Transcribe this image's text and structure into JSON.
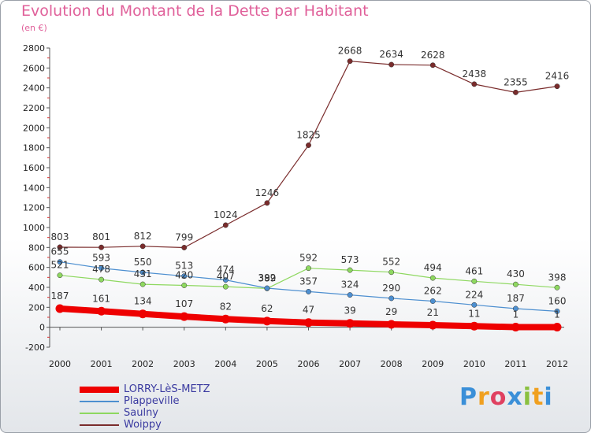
{
  "title": "Evolution du Montant de la Dette par Habitant",
  "subtitle": "(en €)",
  "logo": "Proxiti",
  "colors": {
    "title": "#e0609a",
    "legend_text": "#3a3aa0"
  },
  "chart_data": {
    "type": "line",
    "x": [
      "2000",
      "2001",
      "2002",
      "2003",
      "2004",
      "2005",
      "2006",
      "2007",
      "2008",
      "2009",
      "2010",
      "2011",
      "2012"
    ],
    "yticks": [
      "-200",
      "0",
      "200",
      "400",
      "600",
      "800",
      "1000",
      "1200",
      "1400",
      "1600",
      "1800",
      "2000",
      "2200",
      "2400",
      "2600",
      "2800"
    ],
    "ylim": [
      -200,
      2800
    ],
    "grid": false,
    "legend_position": "bottom-left",
    "series": [
      {
        "name": "LORRY-LèS-METZ",
        "color": "#ee0000",
        "width": 8,
        "values": [
          187,
          161,
          134,
          107,
          82,
          62,
          47,
          39,
          29,
          21,
          11,
          1,
          1
        ]
      },
      {
        "name": "Plappeville",
        "color": "#4d8fd0",
        "width": 1.2,
        "values": [
          655,
          593,
          550,
          513,
          474,
          392,
          357,
          324,
          290,
          262,
          224,
          187,
          160
        ]
      },
      {
        "name": "Saulny",
        "color": "#8ed860",
        "width": 1.2,
        "values": [
          521,
          478,
          431,
          420,
          407,
          389,
          592,
          573,
          552,
          494,
          461,
          430,
          398
        ]
      },
      {
        "name": "Woippy",
        "color": "#7a2c2c",
        "width": 1.2,
        "values": [
          803,
          801,
          812,
          799,
          1024,
          1246,
          1825,
          2668,
          2634,
          2628,
          2438,
          2355,
          2416
        ]
      }
    ],
    "point_labels": [
      {
        "series": 0,
        "values": [
          "187",
          "161",
          "134",
          "107",
          "82",
          "62",
          "47",
          "39",
          "29",
          "21",
          "11",
          "1",
          "1"
        ]
      },
      {
        "series": 1,
        "values": [
          "655",
          "593",
          "550",
          "513",
          "474",
          "392",
          "357",
          "324",
          "290",
          "262",
          "224",
          "187",
          "160"
        ]
      },
      {
        "series": 2,
        "values": [
          "521",
          "478",
          "431",
          "420",
          "407",
          "389",
          "592",
          "573",
          "552",
          "494",
          "461",
          "430",
          "398"
        ]
      },
      {
        "series": 3,
        "values": [
          "803",
          "801",
          "812",
          "799",
          "1024",
          "1246",
          "1825",
          "2668",
          "2634",
          "2628",
          "2438",
          "2355",
          "2416"
        ]
      }
    ]
  }
}
